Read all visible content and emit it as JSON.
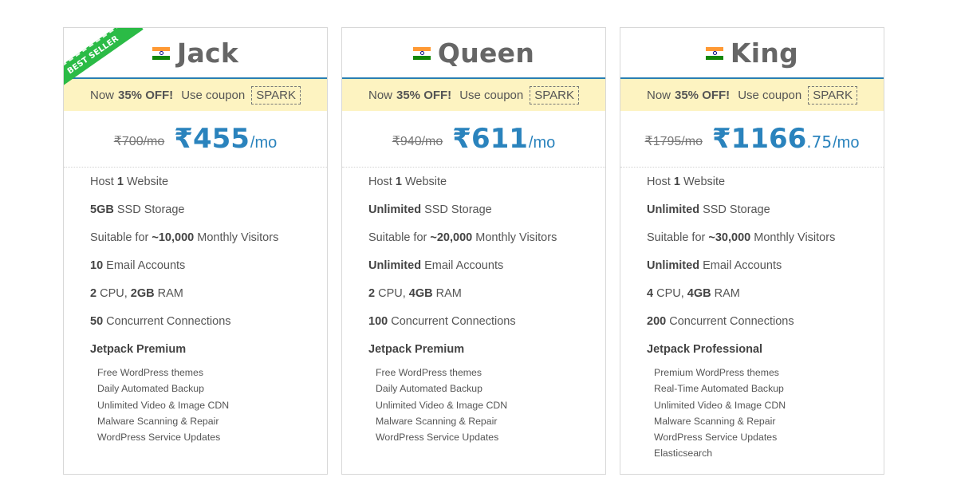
{
  "plans": [
    {
      "name": "Jack",
      "ribbon": "BEST SELLER",
      "promo": {
        "prefix": "Now",
        "discount": "35% OFF!",
        "coupon_text": "Use coupon",
        "coupon_code": "SPARK"
      },
      "price": {
        "old": "₹700/mo",
        "currency": "₹",
        "amount": "455",
        "cents": "",
        "period": "/mo"
      },
      "features": [
        {
          "pre": "Host ",
          "bold": "1",
          "post": " Website"
        },
        {
          "pre": "",
          "bold": "5GB",
          "post": " SSD Storage"
        },
        {
          "pre": "Suitable for ",
          "bold": "~10,000",
          "post": " Monthly Visitors"
        },
        {
          "pre": "",
          "bold": "10",
          "post": " Email Accounts"
        },
        {
          "pre": "",
          "bold": "2",
          "mid": " CPU, ",
          "bold2": "2GB",
          "post": " RAM"
        },
        {
          "pre": "",
          "bold": "50",
          "post": " Concurrent Connections"
        }
      ],
      "jetpack_title": "Jetpack Premium",
      "jetpack_items": [
        "Free WordPress themes",
        "Daily Automated Backup",
        "Unlimited Video & Image CDN",
        "Malware Scanning & Repair",
        "WordPress Service Updates"
      ]
    },
    {
      "name": "Queen",
      "ribbon": "",
      "promo": {
        "prefix": "Now",
        "discount": "35% OFF!",
        "coupon_text": "Use coupon",
        "coupon_code": "SPARK"
      },
      "price": {
        "old": "₹940/mo",
        "currency": "₹",
        "amount": "611",
        "cents": "",
        "period": "/mo"
      },
      "features": [
        {
          "pre": "Host ",
          "bold": "1",
          "post": " Website"
        },
        {
          "pre": "",
          "bold": "Unlimited",
          "post": " SSD Storage"
        },
        {
          "pre": "Suitable for ",
          "bold": "~20,000",
          "post": " Monthly Visitors"
        },
        {
          "pre": "",
          "bold": "Unlimited",
          "post": " Email Accounts"
        },
        {
          "pre": "",
          "bold": "2",
          "mid": " CPU, ",
          "bold2": "4GB",
          "post": " RAM"
        },
        {
          "pre": "",
          "bold": "100",
          "post": " Concurrent Connections"
        }
      ],
      "jetpack_title": "Jetpack Premium",
      "jetpack_items": [
        "Free WordPress themes",
        "Daily Automated Backup",
        "Unlimited Video & Image CDN",
        "Malware Scanning & Repair",
        "WordPress Service Updates"
      ]
    },
    {
      "name": "King",
      "ribbon": "",
      "promo": {
        "prefix": "Now",
        "discount": "35% OFF!",
        "coupon_text": "Use coupon",
        "coupon_code": "SPARK"
      },
      "price": {
        "old": "₹1795/mo",
        "currency": "₹",
        "amount": "1166",
        "cents": ".75",
        "period": "/mo"
      },
      "features": [
        {
          "pre": "Host ",
          "bold": "1",
          "post": " Website"
        },
        {
          "pre": "",
          "bold": "Unlimited",
          "post": " SSD Storage"
        },
        {
          "pre": "Suitable for ",
          "bold": "~30,000",
          "post": " Monthly Visitors"
        },
        {
          "pre": "",
          "bold": "Unlimited",
          "post": " Email Accounts"
        },
        {
          "pre": "",
          "bold": "4",
          "mid": " CPU, ",
          "bold2": "4GB",
          "post": " RAM"
        },
        {
          "pre": "",
          "bold": "200",
          "post": " Concurrent Connections"
        }
      ],
      "jetpack_title": "Jetpack Professional",
      "jetpack_items": [
        "Premium WordPress themes",
        "Real-Time Automated Backup",
        "Unlimited Video & Image CDN",
        "Malware Scanning & Repair",
        "WordPress Service Updates",
        "Elasticsearch"
      ]
    }
  ],
  "icons": {
    "flag": "india-flag-icon"
  },
  "colors": {
    "accent": "#2a83bd",
    "promo_bg": "#fdf3c1",
    "ribbon": "#2bbb46",
    "flag_saffron": "#ff9933",
    "flag_green": "#138808"
  }
}
